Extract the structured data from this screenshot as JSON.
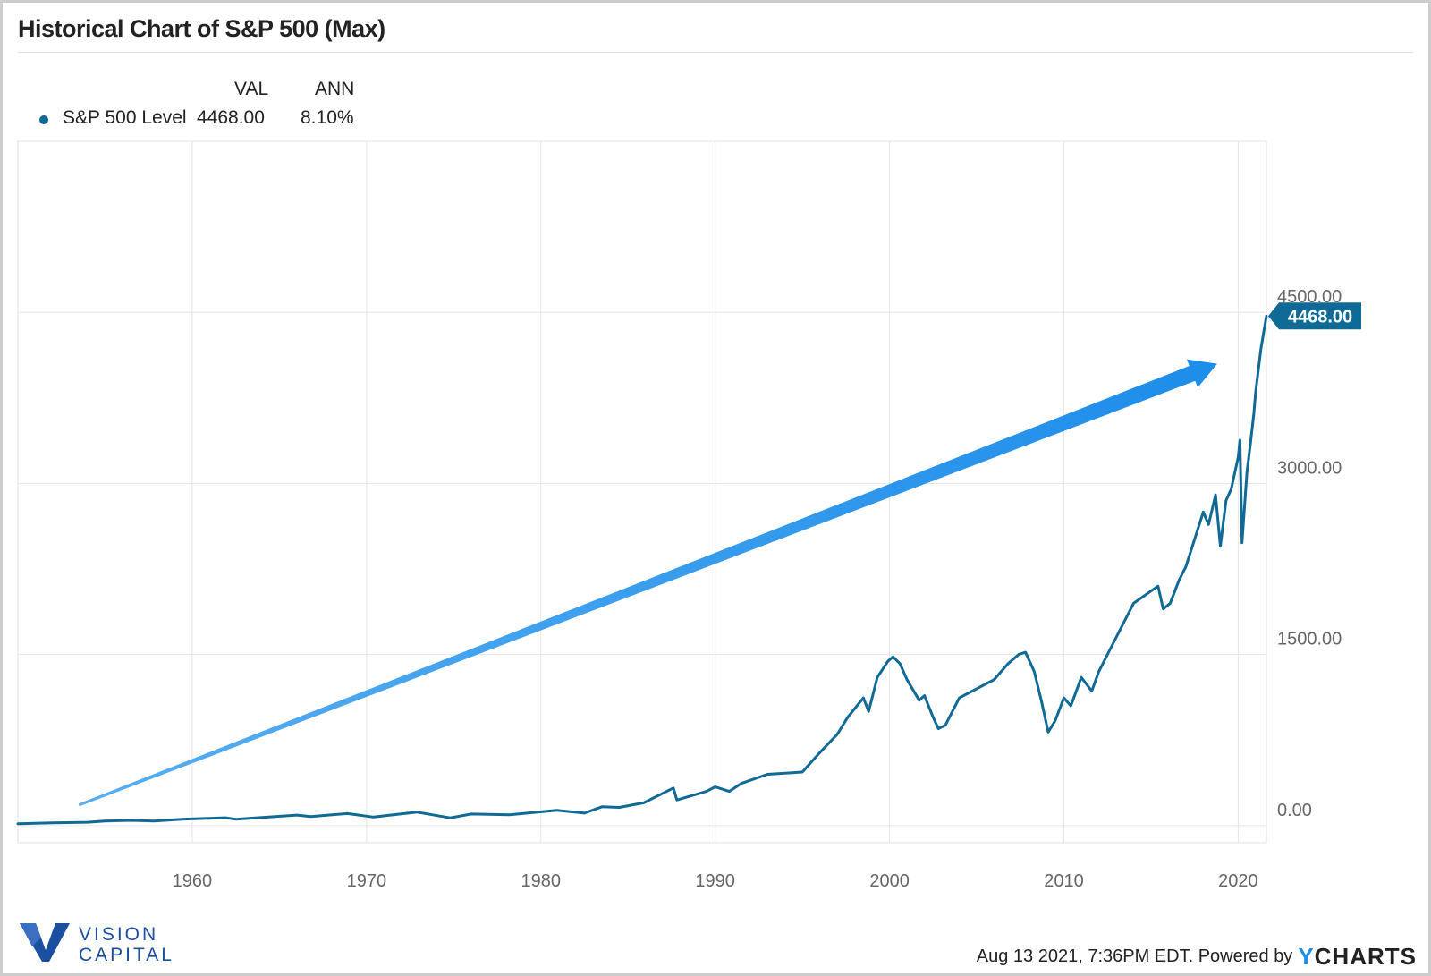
{
  "title": "Historical Chart of S&P 500 (Max)",
  "legend": {
    "headers": [
      "VAL",
      "ANN"
    ],
    "series_name": "S&P 500 Level",
    "val": "4468.00",
    "ann": "8.10%",
    "dot_color": "#0f6a96"
  },
  "colors": {
    "line": "#0f6a96",
    "arrow": "#1c8dea",
    "badge": "#0f6a96",
    "grid": "#e6e6e6"
  },
  "brand": {
    "line1": "VISION",
    "line2": "CAPITAL",
    "color": "#1b4fa0"
  },
  "footer": {
    "text": "Aug 13 2021, 7:36PM EDT.  Powered by",
    "logo_y": "Y",
    "logo_rest": "CHARTS"
  },
  "chart_data": {
    "type": "line",
    "title": "Historical Chart of S&P 500 (Max)",
    "xlabel": "",
    "ylabel": "",
    "xlim": [
      1950.0,
      2021.62
    ],
    "ylim": [
      -150,
      6000
    ],
    "x_ticks": [
      1960,
      1970,
      1980,
      1990,
      2000,
      2010,
      2020
    ],
    "y_ticks": [
      0,
      1500,
      3000,
      4500
    ],
    "y_tick_labels": [
      "0.00",
      "1500.00",
      "3000.00",
      "4500.00"
    ],
    "grid": true,
    "legend_position": "top-left",
    "last_value_badge": "4468.00",
    "annotations": [
      {
        "type": "trend-arrow",
        "from": [
          1953.5,
          180
        ],
        "to": [
          2018.8,
          4050
        ]
      }
    ],
    "series": [
      {
        "name": "S&P 500 Level",
        "x": [
          1950.0,
          1952.0,
          1954.0,
          1955.0,
          1956.5,
          1957.8,
          1959.5,
          1961.9,
          1962.5,
          1966.0,
          1966.8,
          1968.9,
          1970.4,
          1972.9,
          1974.8,
          1976.0,
          1978.2,
          1980.9,
          1982.5,
          1983.5,
          1984.5,
          1985.9,
          1987.6,
          1987.8,
          1989.5,
          1990.0,
          1990.8,
          1991.5,
          1993.0,
          1995.0,
          1996.0,
          1997.0,
          1997.6,
          1998.5,
          1998.8,
          1999.3,
          1999.9,
          2000.2,
          2000.6,
          2001.0,
          2001.7,
          2002.0,
          2002.5,
          2002.8,
          2003.2,
          2004.0,
          2005.0,
          2006.0,
          2006.8,
          2007.4,
          2007.8,
          2008.3,
          2008.7,
          2009.1,
          2009.5,
          2010.0,
          2010.4,
          2011.0,
          2011.6,
          2012.0,
          2013.0,
          2014.0,
          2015.4,
          2015.7,
          2016.1,
          2016.6,
          2017.0,
          2018.0,
          2018.3,
          2018.7,
          2018.98,
          2019.3,
          2019.6,
          2020.0,
          2020.1,
          2020.22,
          2020.5,
          2020.7,
          2020.9,
          2021.0,
          2021.3,
          2021.62
        ],
        "values": [
          17,
          25,
          30,
          40,
          46,
          41,
          57,
          69,
          56,
          92,
          80,
          106,
          75,
          118,
          68,
          102,
          95,
          135,
          110,
          165,
          160,
          200,
          330,
          225,
          300,
          340,
          300,
          370,
          450,
          470,
          640,
          800,
          950,
          1120,
          1000,
          1300,
          1440,
          1480,
          1420,
          1280,
          1100,
          1140,
          950,
          850,
          880,
          1120,
          1200,
          1280,
          1420,
          1500,
          1520,
          1350,
          1100,
          820,
          920,
          1120,
          1050,
          1300,
          1180,
          1350,
          1650,
          1950,
          2100,
          1900,
          1950,
          2150,
          2270,
          2750,
          2640,
          2900,
          2450,
          2850,
          2950,
          3230,
          3380,
          2480,
          3100,
          3350,
          3620,
          3800,
          4180,
          4468
        ]
      }
    ]
  }
}
